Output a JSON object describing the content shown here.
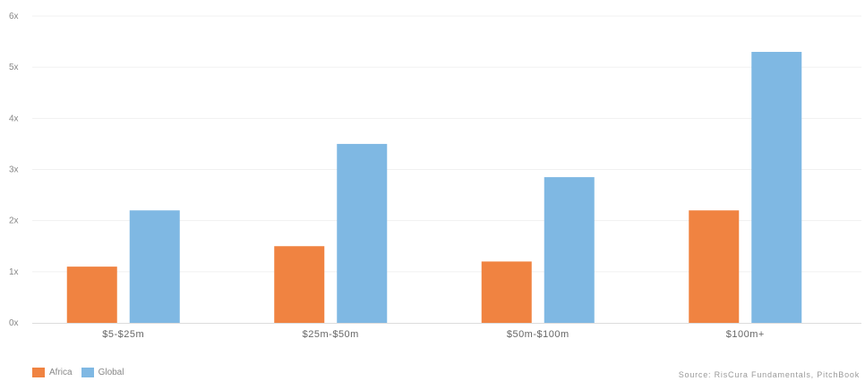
{
  "chart_data": {
    "type": "bar",
    "categories": [
      "$5-$25m",
      "$25m-$50m",
      "$50m-$100m",
      "$100m+"
    ],
    "series": [
      {
        "name": "Africa",
        "values": [
          1.1,
          1.5,
          1.2,
          2.2
        ],
        "color": "#f08341"
      },
      {
        "name": "Global",
        "values": [
          2.2,
          3.5,
          2.85,
          5.3
        ],
        "color": "#7fb8e3"
      }
    ],
    "y_ticks": [
      "0x",
      "1x",
      "2x",
      "3x",
      "4x",
      "5x",
      "6x"
    ],
    "ylim": [
      0,
      6
    ],
    "grid": true,
    "legend": "bottom-left",
    "source": "Source: RisCura Fundamentals, PitchBook"
  }
}
